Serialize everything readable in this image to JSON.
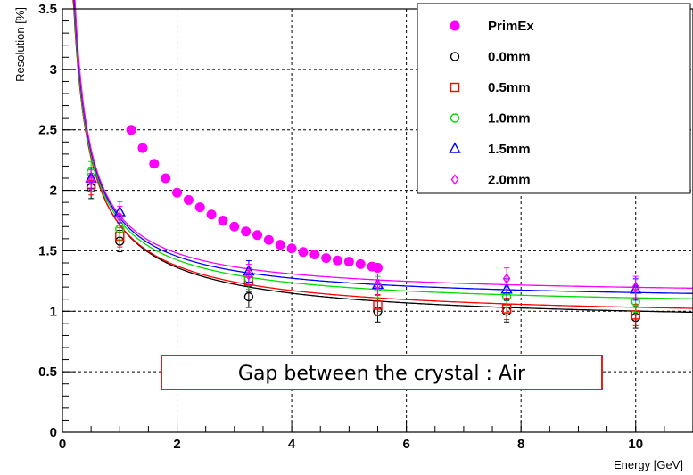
{
  "chart_data": {
    "type": "scatter",
    "xlabel": "Energy [GeV]",
    "ylabel": "Resolution [%]",
    "xlim": [
      0,
      11
    ],
    "ylim": [
      0,
      3.5
    ],
    "x_ticks": [
      "0",
      "2",
      "4",
      "6",
      "8",
      "10"
    ],
    "y_ticks": [
      "0",
      "0.5",
      "1",
      "1.5",
      "2",
      "2.5",
      "3",
      "3.5"
    ],
    "grid": true,
    "legend_position": "top-right",
    "annotation": "Gap between the crystal : Air",
    "series": [
      {
        "name": "PrimEx",
        "marker": "filled-circle",
        "color": "#ff00ff",
        "x": [
          1.2,
          1.4,
          1.6,
          1.8,
          2.0,
          2.2,
          2.4,
          2.6,
          2.8,
          3.0,
          3.2,
          3.4,
          3.6,
          3.8,
          4.0,
          4.2,
          4.4,
          4.6,
          4.8,
          5.0,
          5.2,
          5.4,
          5.5
        ],
        "y": [
          2.5,
          2.35,
          2.22,
          2.1,
          1.98,
          1.92,
          1.86,
          1.8,
          1.75,
          1.7,
          1.66,
          1.63,
          1.59,
          1.55,
          1.52,
          1.49,
          1.47,
          1.44,
          1.42,
          1.41,
          1.39,
          1.37,
          1.36
        ]
      },
      {
        "name": "0.0mm",
        "marker": "open-circle",
        "color": "#000000",
        "x": [
          0.5,
          1.0,
          3.25,
          5.5,
          7.75,
          10.0
        ],
        "y": [
          2.02,
          1.58,
          1.12,
          1.0,
          1.0,
          0.95
        ],
        "fit": {
          "a": 1.45,
          "b": 0.89,
          "c": 0.2
        }
      },
      {
        "name": "0.5mm",
        "marker": "open-square",
        "color": "#ff0000",
        "x": [
          0.5,
          1.0,
          3.25,
          5.5,
          7.75,
          10.0
        ],
        "y": [
          2.05,
          1.62,
          1.25,
          1.05,
          1.02,
          0.97
        ],
        "fit": {
          "a": 1.42,
          "b": 0.93,
          "c": 0.25
        }
      },
      {
        "name": "1.0mm",
        "marker": "open-circle",
        "color": "#00dd00",
        "x": [
          0.5,
          1.0,
          3.25,
          5.5,
          7.75,
          10.0
        ],
        "y": [
          2.15,
          1.68,
          1.27,
          1.2,
          1.12,
          1.08
        ],
        "fit": {
          "a": 1.39,
          "b": 1.02,
          "c": 0.3
        }
      },
      {
        "name": "1.5mm",
        "marker": "open-triangle",
        "color": "#0000ff",
        "x": [
          0.5,
          1.0,
          3.25,
          5.5,
          7.75,
          10.0
        ],
        "y": [
          2.1,
          1.82,
          1.33,
          1.22,
          1.18,
          1.18
        ],
        "fit": {
          "a": 1.37,
          "b": 1.07,
          "c": 0.35
        }
      },
      {
        "name": "2.0mm",
        "marker": "open-diamond",
        "color": "#ff00ff",
        "x": [
          0.5,
          1.0,
          3.25,
          5.5,
          7.75,
          10.0
        ],
        "y": [
          2.08,
          1.78,
          1.3,
          1.22,
          1.27,
          1.2
        ],
        "fit": {
          "a": 1.34,
          "b": 1.12,
          "c": 0.4
        }
      }
    ]
  }
}
